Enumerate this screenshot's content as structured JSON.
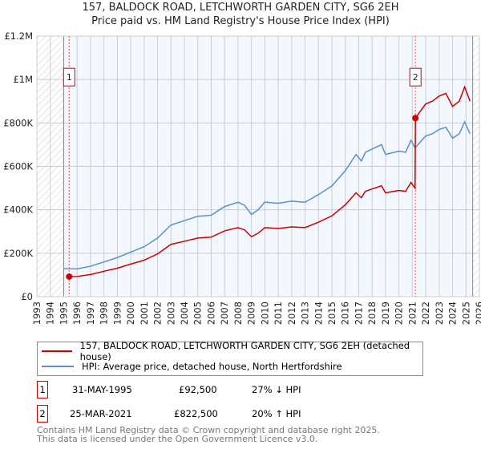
{
  "chart_data": {
    "type": "line",
    "title": "157, BALDOCK ROAD, LETCHWORTH GARDEN CITY, SG6 2EH",
    "subtitle": "Price paid vs. HM Land Registry's House Price Index (HPI)",
    "xlim": [
      1993,
      2026
    ],
    "ylim": [
      0,
      1200000
    ],
    "y_ticks": [
      {
        "v": 0,
        "label": "£0"
      },
      {
        "v": 200000,
        "label": "£200K"
      },
      {
        "v": 400000,
        "label": "£400K"
      },
      {
        "v": 600000,
        "label": "£600K"
      },
      {
        "v": 800000,
        "label": "£800K"
      },
      {
        "v": 1000000,
        "label": "£1M"
      },
      {
        "v": 1200000,
        "label": "£1.2M"
      }
    ],
    "x_ticks": [
      "1993",
      "1994",
      "1995",
      "1996",
      "1997",
      "1998",
      "1999",
      "2000",
      "2001",
      "2002",
      "2003",
      "2004",
      "2005",
      "2006",
      "2007",
      "2008",
      "2009",
      "2010",
      "2011",
      "2012",
      "2013",
      "2014",
      "2015",
      "2016",
      "2017",
      "2018",
      "2019",
      "2020",
      "2021",
      "2022",
      "2023",
      "2024",
      "2025",
      "2026"
    ],
    "grid": true,
    "data_range": [
      1995,
      2025.5
    ],
    "series": [
      {
        "name": "157, BALDOCK ROAD, LETCHWORTH GARDEN CITY, SG6 2EH (detached house)",
        "color": "#cc0000",
        "x": [
          1995.41,
          1996,
          1997,
          1998,
          1999,
          2000,
          2001,
          2002,
          2003,
          2004,
          2005,
          2006,
          2007,
          2008,
          2008.5,
          2009,
          2009.5,
          2010,
          2011,
          2012,
          2013,
          2014,
          2015,
          2016,
          2016.8,
          2017.2,
          2017.5,
          2018,
          2018.7,
          2019,
          2020,
          2020.5,
          2020.9,
          2021.2,
          2021.23,
          2022,
          2022.5,
          2023,
          2023.5,
          2024,
          2024.5,
          2024.9,
          2025.3
        ],
        "y": [
          92500,
          93000,
          102000,
          117000,
          131000,
          150000,
          168000,
          197000,
          241000,
          255000,
          270000,
          274000,
          303000,
          318000,
          307000,
          276000,
          292000,
          318000,
          314000,
          321000,
          318000,
          343000,
          372000,
          423000,
          478000,
          456000,
          485000,
          496000,
          511000,
          478000,
          489000,
          485000,
          526000,
          500000,
          822500,
          888000,
          900000,
          924000,
          936000,
          876000,
          900000,
          966000,
          900000
        ]
      },
      {
        "name": "HPI: Average price, detached house, North Hertfordshire",
        "color": "#5b8fd0",
        "x": [
          1995,
          1996,
          1997,
          1998,
          1999,
          2000,
          2001,
          2002,
          2003,
          2004,
          2005,
          2006,
          2007,
          2008,
          2008.5,
          2009,
          2009.5,
          2010,
          2011,
          2012,
          2013,
          2014,
          2015,
          2016,
          2016.8,
          2017.2,
          2017.5,
          2018,
          2018.7,
          2019,
          2020,
          2020.5,
          2020.9,
          2021.2,
          2022,
          2022.5,
          2023,
          2023.5,
          2024,
          2024.5,
          2024.9,
          2025.3
        ],
        "y": [
          129000,
          128000,
          140000,
          160000,
          180000,
          205000,
          230000,
          270000,
          330000,
          350000,
          370000,
          375000,
          415000,
          435000,
          420000,
          378000,
          400000,
          435000,
          430000,
          440000,
          435000,
          470000,
          510000,
          580000,
          655000,
          625000,
          665000,
          680000,
          700000,
          655000,
          670000,
          665000,
          720000,
          685000,
          740000,
          750000,
          770000,
          780000,
          730000,
          750000,
          805000,
          750000
        ]
      }
    ],
    "sales": [
      {
        "label": "1",
        "x": 1995.41,
        "y": 92500
      },
      {
        "label": "2",
        "x": 2021.23,
        "y": 822500
      }
    ]
  },
  "legend": {
    "red": "157, BALDOCK ROAD, LETCHWORTH GARDEN CITY, SG6 2EH (detached house)",
    "blue": "HPI: Average price, detached house, North Hertfordshire"
  },
  "transactions": [
    {
      "num": "1",
      "date": "31-MAY-1995",
      "price": "£92,500",
      "hpi": "27% ↓ HPI"
    },
    {
      "num": "2",
      "date": "25-MAR-2021",
      "price": "£822,500",
      "hpi": "20% ↑ HPI"
    }
  ],
  "footer": {
    "line1": "Contains HM Land Registry data © Crown copyright and database right 2025.",
    "line2": "This data is licensed under the Open Government Licence v3.0."
  }
}
